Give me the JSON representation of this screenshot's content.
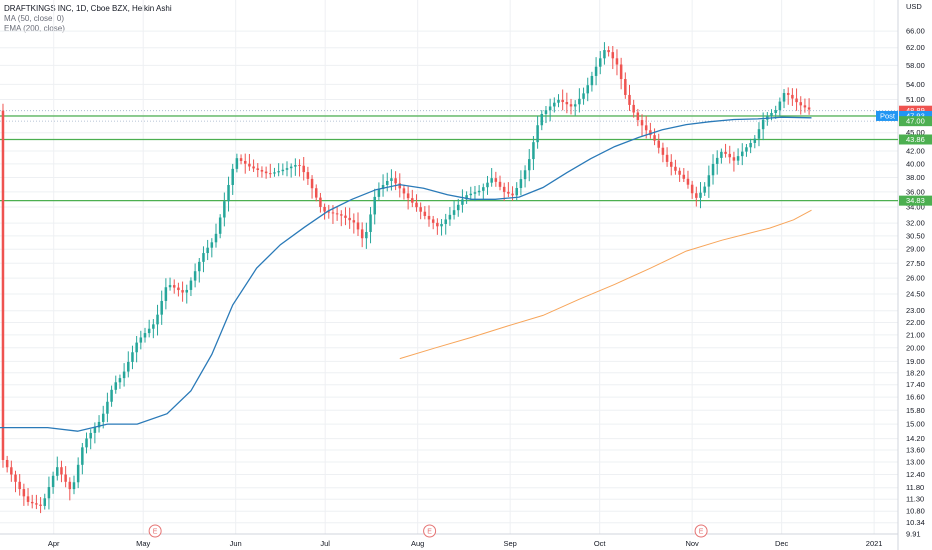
{
  "legend": {
    "title": "DRAFTKINGS INC, 1D, Cboe BZX, Heikin Ashi",
    "ma": "MA (50, close, 0)",
    "ema": "EMA (200, close)"
  },
  "colors": {
    "up": "#26a69a",
    "down": "#ef5350",
    "ma": "#2a7ab8",
    "ema": "#f7a55a",
    "hline": "#4caf50",
    "grid": "#eef0f3",
    "dotted": "#9fb0c8",
    "post": "#2196f3",
    "earnings": "#e57373"
  },
  "chart_data": {
    "type": "candlestick",
    "currency": "USD",
    "scale": "log",
    "ylim": [
      9.91,
      70.4
    ],
    "y_ticks": [
      "66.00",
      "62.00",
      "58.00",
      "54.00",
      "51.00",
      "48.00",
      "45.00",
      "42.00",
      "40.00",
      "38.00",
      "36.00",
      "34.00",
      "32.00",
      "30.50",
      "29.00",
      "27.50",
      "26.00",
      "24.50",
      "23.00",
      "22.00",
      "21.00",
      "20.00",
      "19.00",
      "18.20",
      "17.40",
      "16.60",
      "15.80",
      "15.00",
      "14.20",
      "13.60",
      "13.00",
      "12.40",
      "11.80",
      "11.30",
      "10.80",
      "10.34",
      "9.91"
    ],
    "x_ticks": [
      {
        "label": "Apr",
        "day": 12
      },
      {
        "label": "May",
        "day": 42
      },
      {
        "label": "Jun",
        "day": 73
      },
      {
        "label": "Jul",
        "day": 103
      },
      {
        "label": "Aug",
        "day": 134
      },
      {
        "label": "Sep",
        "day": 165
      },
      {
        "label": "Oct",
        "day": 195
      },
      {
        "label": "Nov",
        "day": 226
      },
      {
        "label": "Dec",
        "day": 256
      },
      {
        "label": "2021",
        "day": 287
      }
    ],
    "x_range_days": [
      -6,
      295
    ],
    "ohlc_keypoints": [
      [
        -5,
        13.1
      ],
      [
        3,
        11.2
      ],
      [
        8,
        11.0
      ],
      [
        13,
        12.8
      ],
      [
        18,
        11.6
      ],
      [
        22,
        14.0
      ],
      [
        28,
        15.3
      ],
      [
        32,
        17.4
      ],
      [
        35,
        18.0
      ],
      [
        40,
        20.5
      ],
      [
        46,
        22.0
      ],
      [
        50,
        25.5
      ],
      [
        56,
        24.5
      ],
      [
        62,
        28.5
      ],
      [
        66,
        30.2
      ],
      [
        70,
        36.0
      ],
      [
        73,
        41.0
      ],
      [
        78,
        39.5
      ],
      [
        84,
        38.5
      ],
      [
        88,
        39.0
      ],
      [
        94,
        40.0
      ],
      [
        97,
        38.0
      ],
      [
        102,
        33.5
      ],
      [
        108,
        33.0
      ],
      [
        113,
        32.0
      ],
      [
        116,
        29.8
      ],
      [
        120,
        36.0
      ],
      [
        125,
        38.0
      ],
      [
        130,
        35.5
      ],
      [
        136,
        33.0
      ],
      [
        141,
        31.5
      ],
      [
        146,
        33.5
      ],
      [
        150,
        35.5
      ],
      [
        155,
        36.2
      ],
      [
        159,
        38.0
      ],
      [
        163,
        36.0
      ],
      [
        166,
        35.5
      ],
      [
        171,
        40.0
      ],
      [
        175,
        48.0
      ],
      [
        181,
        51.0
      ],
      [
        186,
        49.5
      ],
      [
        190,
        52.5
      ],
      [
        194,
        58.0
      ],
      [
        197,
        62.0
      ],
      [
        201,
        58.0
      ],
      [
        204,
        51.0
      ],
      [
        208,
        47.0
      ],
      [
        213,
        44.0
      ],
      [
        218,
        40.0
      ],
      [
        224,
        37.5
      ],
      [
        227,
        35.0
      ],
      [
        230,
        36.5
      ],
      [
        233,
        40.0
      ],
      [
        236,
        42.0
      ],
      [
        240,
        40.5
      ],
      [
        243,
        42.0
      ],
      [
        247,
        44.0
      ],
      [
        250,
        47.5
      ],
      [
        254,
        49.0
      ],
      [
        257,
        52.5
      ],
      [
        262,
        50.0
      ],
      [
        266,
        48.89
      ]
    ],
    "series": [
      {
        "name": "MA (50, close, 0)",
        "points": [
          [
            -6,
            14.8
          ],
          [
            10,
            14.8
          ],
          [
            20,
            14.6
          ],
          [
            30,
            15.0
          ],
          [
            40,
            15.0
          ],
          [
            50,
            15.6
          ],
          [
            58,
            17.0
          ],
          [
            65,
            19.5
          ],
          [
            72,
            23.5
          ],
          [
            80,
            27.0
          ],
          [
            88,
            29.5
          ],
          [
            96,
            31.5
          ],
          [
            104,
            33.5
          ],
          [
            112,
            35.0
          ],
          [
            120,
            36.3
          ],
          [
            128,
            37.0
          ],
          [
            136,
            36.5
          ],
          [
            144,
            35.6
          ],
          [
            152,
            35.0
          ],
          [
            160,
            35.0
          ],
          [
            168,
            35.3
          ],
          [
            176,
            36.6
          ],
          [
            184,
            38.7
          ],
          [
            192,
            40.8
          ],
          [
            200,
            42.7
          ],
          [
            208,
            44.2
          ],
          [
            216,
            45.5
          ],
          [
            224,
            46.4
          ],
          [
            232,
            46.9
          ],
          [
            240,
            47.3
          ],
          [
            248,
            47.4
          ],
          [
            256,
            47.7
          ],
          [
            266,
            47.6
          ]
        ]
      },
      {
        "name": "EMA (200, close)",
        "points": [
          [
            128,
            19.2
          ],
          [
            140,
            20.0
          ],
          [
            152,
            20.8
          ],
          [
            164,
            21.7
          ],
          [
            176,
            22.6
          ],
          [
            188,
            24.0
          ],
          [
            200,
            25.4
          ],
          [
            212,
            27.0
          ],
          [
            224,
            28.8
          ],
          [
            236,
            30.0
          ],
          [
            244,
            30.7
          ],
          [
            252,
            31.4
          ],
          [
            260,
            32.4
          ],
          [
            266,
            33.6
          ]
        ]
      }
    ],
    "horizontal_lines": [
      47.93,
      43.86,
      34.83
    ],
    "dotted_lines": [
      48.89,
      47.93,
      47.0
    ],
    "price_tags": [
      {
        "value": 48.89,
        "label": "48.89",
        "color": "#ef5350"
      },
      {
        "value": 47.93,
        "label": "47.93",
        "color": "#ef5350"
      },
      {
        "value": 47.93,
        "label": "47.93",
        "color": "#2196f3",
        "prefix": "Post"
      },
      {
        "value": 47.0,
        "label": "47.00",
        "color": "#4caf50"
      },
      {
        "value": 43.86,
        "label": "43.86",
        "color": "#4caf50"
      },
      {
        "value": 34.83,
        "label": "34.83",
        "color": "#4caf50"
      }
    ],
    "earnings_markers": [
      {
        "day": 46,
        "label": "E"
      },
      {
        "day": 138,
        "label": "E"
      },
      {
        "day": 229,
        "label": "E"
      }
    ]
  }
}
